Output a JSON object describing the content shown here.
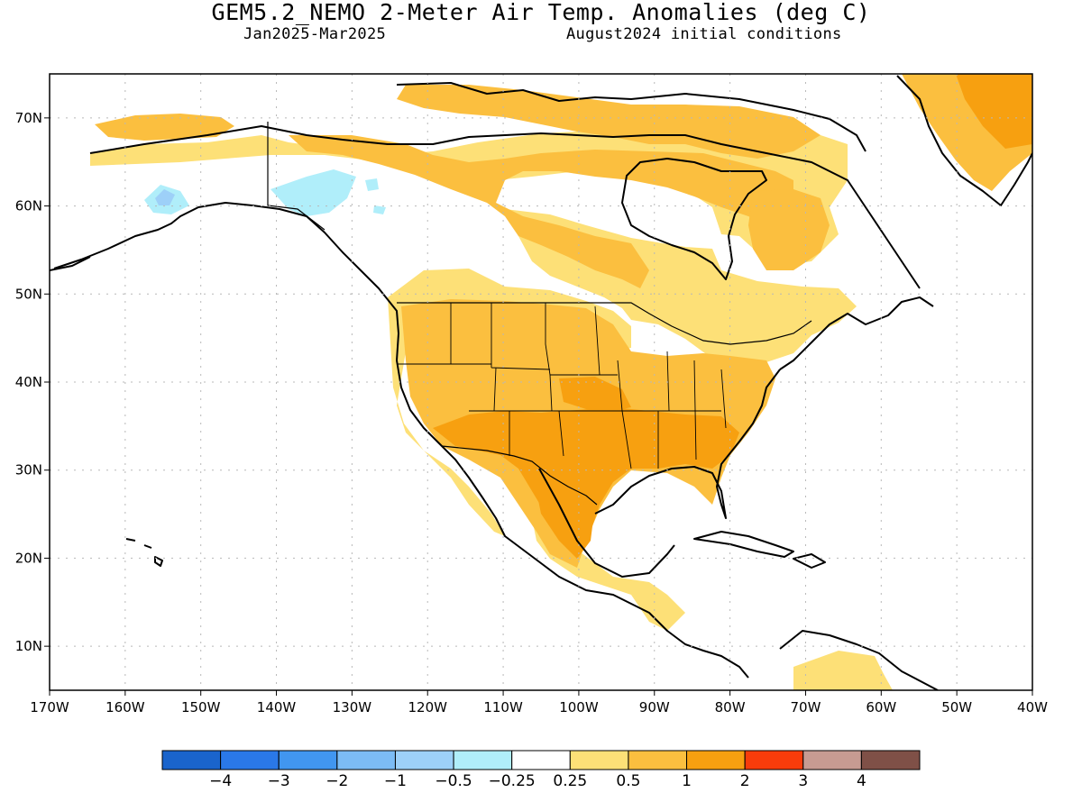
{
  "header": {
    "title": "GEM5.2_NEMO 2-Meter Air Temp. Anomalies (deg C)",
    "period": "Jan2025-Mar2025",
    "init": "August2024 initial conditions"
  },
  "map": {
    "lon_range": [
      -170,
      -40
    ],
    "lat_range": [
      5,
      75
    ],
    "lon_ticks": [
      "170W",
      "160W",
      "150W",
      "140W",
      "130W",
      "120W",
      "110W",
      "100W",
      "90W",
      "80W",
      "70W",
      "60W",
      "50W",
      "40W"
    ],
    "lat_ticks": [
      "10N",
      "20N",
      "30N",
      "40N",
      "50N",
      "60N",
      "70N"
    ],
    "grid": true
  },
  "legend": {
    "colors": [
      "#1a64cc",
      "#2a78e8",
      "#4196f0",
      "#7cbcf5",
      "#9dd0f8",
      "#b0eefa",
      "#ffffff",
      "#fde077",
      "#fbbf3f",
      "#f7a010",
      "#f83c0b",
      "#c79b92",
      "#7f5047"
    ],
    "labels": [
      "−4",
      "−3",
      "−2",
      "−1",
      "−0.5",
      "−0.25",
      "0.25",
      "0.5",
      "1",
      "2",
      "3",
      "4"
    ]
  }
}
